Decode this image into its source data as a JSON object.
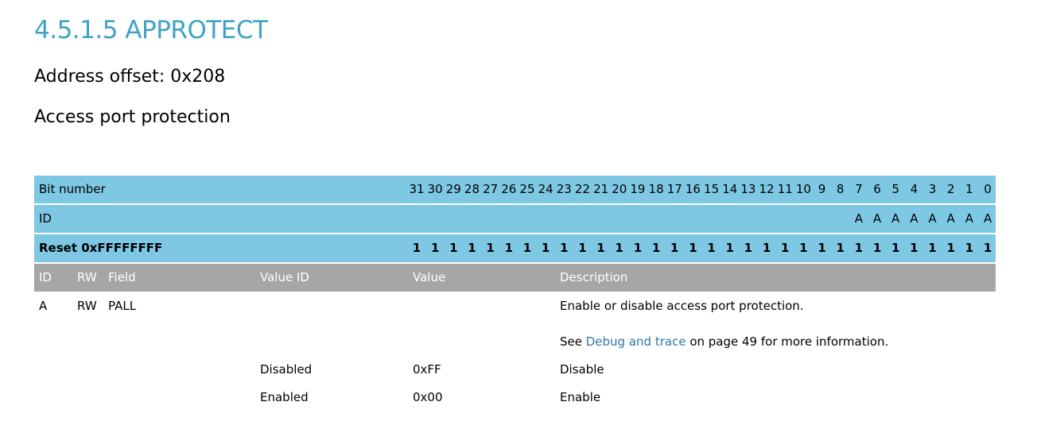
{
  "heading": "4.5.1.5 APPROTECT",
  "address_offset": "Address offset: 0x208",
  "register_description": "Access port protection",
  "bit_table": {
    "bit_number_label": "Bit number",
    "id_label": "ID",
    "reset_label": "Reset 0xFFFFFFFF",
    "bit_numbers": [
      "31",
      "30",
      "29",
      "28",
      "27",
      "26",
      "25",
      "24",
      "23",
      "22",
      "21",
      "20",
      "19",
      "18",
      "17",
      "16",
      "15",
      "14",
      "13",
      "12",
      "11",
      "10",
      "9",
      "8",
      "7",
      "6",
      "5",
      "4",
      "3",
      "2",
      "1",
      "0"
    ],
    "id_bits": [
      "",
      "",
      "",
      "",
      "",
      "",
      "",
      "",
      "",
      "",
      "",
      "",
      "",
      "",
      "",
      "",
      "",
      "",
      "",
      "",
      "",
      "",
      "",
      "",
      "A",
      "A",
      "A",
      "A",
      "A",
      "A",
      "A",
      "A"
    ],
    "reset_bits": [
      "1",
      "1",
      "1",
      "1",
      "1",
      "1",
      "1",
      "1",
      "1",
      "1",
      "1",
      "1",
      "1",
      "1",
      "1",
      "1",
      "1",
      "1",
      "1",
      "1",
      "1",
      "1",
      "1",
      "1",
      "1",
      "1",
      "1",
      "1",
      "1",
      "1",
      "1",
      "1"
    ]
  },
  "field_table": {
    "headers": {
      "id": "ID",
      "rw": "RW",
      "field": "Field",
      "value_id": "Value ID",
      "value": "Value",
      "description": "Description"
    },
    "field": {
      "id": "A",
      "rw": "RW",
      "name": "PALL",
      "description": "Enable or disable access port protection.",
      "see_prefix": "See ",
      "see_link": "Debug and trace",
      "see_suffix": " on page 49 for more information."
    },
    "values": [
      {
        "value_id": "Disabled",
        "value": "0xFF",
        "description": "Disable"
      },
      {
        "value_id": "Enabled",
        "value": "0x00",
        "description": "Enable"
      }
    ]
  }
}
